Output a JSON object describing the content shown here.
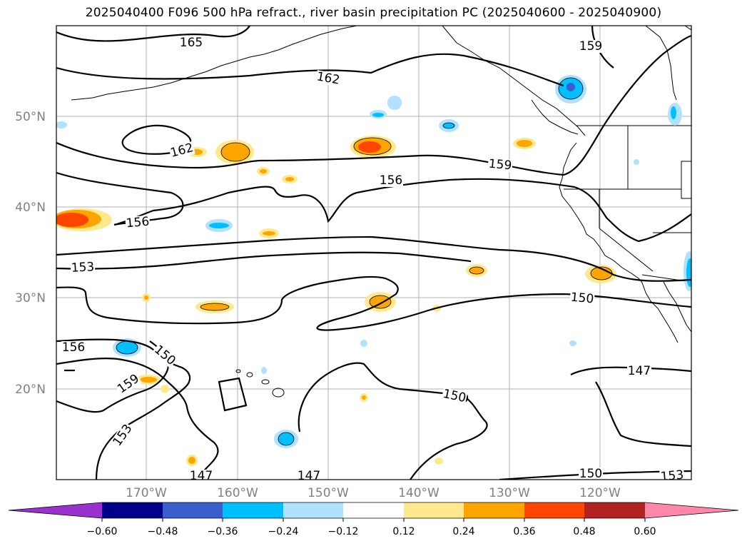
{
  "title": "2025040400 F096 500 hPa refract., river basin precipitation PC (2025040600 - 2025040900)",
  "lat_labels": [
    "50°N",
    "40°N",
    "30°N",
    "20°N"
  ],
  "lon_labels": [
    "170°W",
    "160°W",
    "150°W",
    "140°W",
    "130°W",
    "120°W"
  ],
  "contour_labels": [
    {
      "text": "165",
      "rot": 0
    },
    {
      "text": "162",
      "rot": 10
    },
    {
      "text": "159",
      "rot": 0
    },
    {
      "text": "162",
      "rot": -15
    },
    {
      "text": "159",
      "rot": 5
    },
    {
      "text": "156",
      "rot": 0
    },
    {
      "text": "156",
      "rot": -5
    },
    {
      "text": "153",
      "rot": -3
    },
    {
      "text": "156",
      "rot": 0
    },
    {
      "text": "150",
      "rot": 40
    },
    {
      "text": "159",
      "rot": -35
    },
    {
      "text": "153",
      "rot": -55
    },
    {
      "text": "150",
      "rot": 5
    },
    {
      "text": "150",
      "rot": 12
    },
    {
      "text": "147",
      "rot": 0
    },
    {
      "text": "147",
      "rot": 0
    },
    {
      "text": "147",
      "rot": 0
    },
    {
      "text": "150",
      "rot": 0
    },
    {
      "text": "153",
      "rot": -5
    }
  ],
  "colorbar": {
    "ticks": [
      "−0.60",
      "−0.48",
      "−0.36",
      "−0.24",
      "−0.12",
      "0.12",
      "0.24",
      "0.36",
      "0.48",
      "0.60"
    ],
    "colors": [
      "#9932cc",
      "#00008b",
      "#3a5fcd",
      "#00bfff",
      "#b0e2ff",
      "#ffffff",
      "#ffe98c",
      "#ffa500",
      "#ff4500",
      "#b22222",
      "#ff88aa"
    ]
  },
  "colors": {
    "contour": "#000000",
    "grid": "#b0b0b0",
    "light_blue": "#b0e2ff",
    "blue": "#00bfff",
    "mid_blue": "#3a5fcd",
    "light_yellow": "#ffe98c",
    "orange": "#ffa500",
    "red_orange": "#ff4500"
  }
}
